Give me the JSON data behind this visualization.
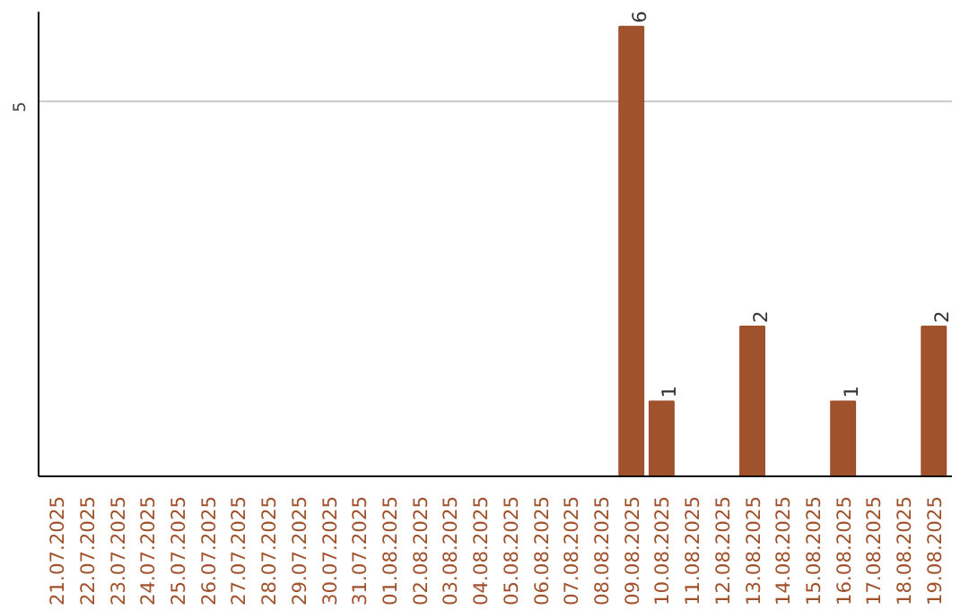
{
  "chart_data": {
    "type": "bar",
    "categories": [
      "21.07.2025",
      "22.07.2025",
      "23.07.2025",
      "24.07.2025",
      "25.07.2025",
      "26.07.2025",
      "27.07.2025",
      "28.07.2025",
      "29.07.2025",
      "30.07.2025",
      "31.07.2025",
      "01.08.2025",
      "02.08.2025",
      "03.08.2025",
      "04.08.2025",
      "05.08.2025",
      "06.08.2025",
      "07.08.2025",
      "08.08.2025",
      "09.08.2025",
      "10.08.2025",
      "11.08.2025",
      "12.08.2025",
      "13.08.2025",
      "14.08.2025",
      "15.08.2025",
      "16.08.2025",
      "17.08.2025",
      "18.08.2025",
      "19.08.2025"
    ],
    "values": [
      null,
      null,
      null,
      null,
      null,
      null,
      null,
      null,
      null,
      null,
      null,
      null,
      null,
      null,
      null,
      null,
      null,
      null,
      null,
      6,
      1,
      null,
      null,
      2,
      null,
      null,
      1,
      null,
      null,
      2
    ],
    "data_labels": true,
    "color": "#a0522d",
    "ylim": [
      0,
      6.2
    ],
    "yticks": [
      5
    ],
    "grid": "y"
  }
}
